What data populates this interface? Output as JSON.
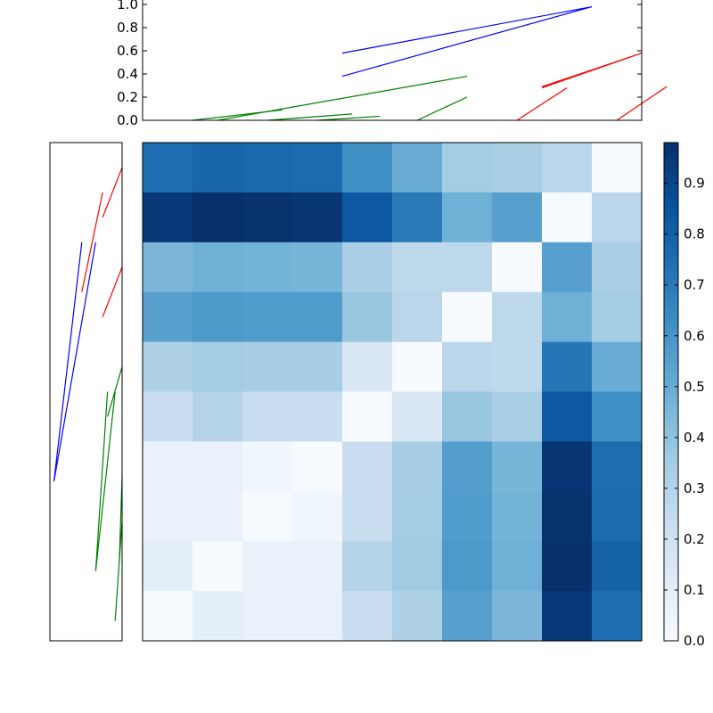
{
  "chart_data": [
    {
      "type": "dendrogram",
      "orientation": "top",
      "yticks": [
        "0.0",
        "0.2",
        "0.4",
        "0.6",
        "0.8",
        "1.0"
      ],
      "ylim": [
        0,
        1.0
      ],
      "leaf_count": 10,
      "links": [
        {
          "x": [
            1,
            2.8,
            2.8,
            1
          ],
          "y": [
            0,
            0.09,
            0.09,
            0
          ],
          "color": "#008000"
        },
        {
          "x": [
            2.5,
            4.2,
            4.2,
            2.5
          ],
          "y": [
            0,
            0.055,
            0.055,
            0
          ],
          "color": "#008000"
        },
        {
          "x": [
            3.5,
            4.75,
            4.75,
            3.5
          ],
          "y": [
            0,
            0.035,
            0.035,
            0
          ],
          "color": "#008000"
        },
        {
          "x": [
            1.5,
            6.5,
            6.5,
            1.5
          ],
          "y": [
            0,
            0.38,
            0.38,
            0
          ],
          "color": "#008000"
        },
        {
          "x": [
            5.5,
            6.5,
            6.5,
            5.5
          ],
          "y": [
            0,
            0.2,
            0.2,
            0
          ],
          "color": "#008000"
        },
        {
          "x": [
            7.5,
            8.5,
            8.5,
            7.5
          ],
          "y": [
            0,
            0.28,
            0.28,
            0
          ],
          "color": "#ff0000"
        },
        {
          "x": [
            9.5,
            10.5,
            10.5,
            9.5
          ],
          "y": [
            0,
            0.29,
            0.29,
            0
          ],
          "color": "#ff0000"
        },
        {
          "x": [
            8.0,
            10.0,
            10.0,
            8.0
          ],
          "y": [
            0.28,
            0.58,
            0.58,
            0.29
          ],
          "color": "#ff0000"
        },
        {
          "x": [
            4.0,
            9.0,
            9.0,
            4.0
          ],
          "y": [
            0.38,
            0.98,
            0.98,
            0.58
          ],
          "color": "#0000ff"
        }
      ]
    },
    {
      "type": "dendrogram",
      "orientation": "left",
      "leaf_count": 10,
      "links": [
        {
          "x": [
            0.5,
            1.5,
            1.5,
            0.5
          ],
          "y": [
            0,
            0.28,
            0.28,
            0
          ],
          "color": "#ff0000"
        },
        {
          "x": [
            2.5,
            3.5,
            3.5,
            2.5
          ],
          "y": [
            0,
            0.28,
            0.28,
            0
          ],
          "color": "#ff0000"
        },
        {
          "x": [
            1.0,
            3.0,
            3.0,
            1.0
          ],
          "y": [
            0.28,
            0.58,
            0.58,
            0.28
          ],
          "color": "#ff0000"
        },
        {
          "x": [
            4.5,
            5.5,
            5.5,
            4.5
          ],
          "y": [
            0,
            0.21,
            0.21,
            0
          ],
          "color": "#008000"
        },
        {
          "x": [
            6.7,
            8.4,
            8.4,
            6.7
          ],
          "y": [
            0,
            0.04,
            0.04,
            0
          ],
          "color": "#008000"
        },
        {
          "x": [
            7.6,
            9.6,
            9.6,
            7.6
          ],
          "y": [
            0,
            0.1,
            0.1,
            0
          ],
          "color": "#008000"
        },
        {
          "x": [
            5.0,
            8.6,
            8.6,
            5.0
          ],
          "y": [
            0.21,
            0.38,
            0.38,
            0.1
          ],
          "color": "#008000"
        },
        {
          "x": [
            2.0,
            6.8,
            6.8,
            2.0
          ],
          "y": [
            0.58,
            0.98,
            0.98,
            0.38
          ],
          "color": "#0000ff"
        }
      ]
    },
    {
      "type": "heatmap",
      "colormap": "Blues",
      "rows": 10,
      "cols": 10,
      "values": [
        [
          0.75,
          0.78,
          0.77,
          0.76,
          0.62,
          0.5,
          0.35,
          0.33,
          0.28,
          0.0
        ],
        [
          0.95,
          0.98,
          0.97,
          0.96,
          0.83,
          0.7,
          0.48,
          0.55,
          0.0,
          0.28
        ],
        [
          0.45,
          0.48,
          0.47,
          0.46,
          0.33,
          0.27,
          0.27,
          0.0,
          0.55,
          0.33
        ],
        [
          0.55,
          0.58,
          0.57,
          0.57,
          0.38,
          0.28,
          0.0,
          0.27,
          0.48,
          0.35
        ],
        [
          0.32,
          0.35,
          0.34,
          0.34,
          0.15,
          0.0,
          0.28,
          0.27,
          0.72,
          0.5
        ],
        [
          0.22,
          0.3,
          0.23,
          0.23,
          0.0,
          0.15,
          0.38,
          0.33,
          0.83,
          0.62
        ],
        [
          0.07,
          0.07,
          0.04,
          0.0,
          0.23,
          0.34,
          0.56,
          0.46,
          0.96,
          0.75
        ],
        [
          0.07,
          0.07,
          0.0,
          0.04,
          0.23,
          0.35,
          0.57,
          0.47,
          0.97,
          0.76
        ],
        [
          0.09,
          0.0,
          0.07,
          0.07,
          0.3,
          0.36,
          0.58,
          0.48,
          0.98,
          0.79
        ],
        [
          0.0,
          0.09,
          0.07,
          0.07,
          0.22,
          0.32,
          0.55,
          0.45,
          0.95,
          0.75
        ]
      ]
    },
    {
      "type": "colorbar",
      "colormap": "Blues",
      "range": [
        0,
        0.98
      ],
      "ticks": [
        "0.0",
        "0.1",
        "0.2",
        "0.3",
        "0.4",
        "0.5",
        "0.6",
        "0.7",
        "0.8",
        "0.9"
      ]
    }
  ]
}
